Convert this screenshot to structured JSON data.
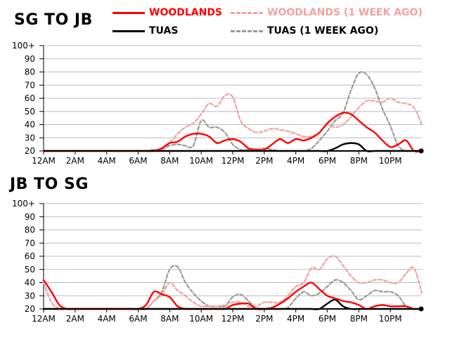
{
  "colors": {
    "woodlands": "#ff0000",
    "woodlands_prev": "#f4a0a0",
    "tuas": "#000000",
    "tuas_prev": "#999999",
    "grid": "#bbbbbb",
    "axis": "#000000"
  },
  "legend": [
    {
      "key": "woodlands",
      "label": "WOODLANDS",
      "style": "solid"
    },
    {
      "key": "woodlands_prev",
      "label": "WOODLANDS (1 WEEK AGO)",
      "style": "dashed"
    },
    {
      "key": "tuas",
      "label": "TUAS",
      "style": "solid"
    },
    {
      "key": "tuas_prev",
      "label": "TUAS (1 WEEK AGO)",
      "style": "dashed"
    }
  ],
  "chart_data": [
    {
      "type": "line",
      "title": "SG TO JB",
      "ylim": [
        20,
        100
      ],
      "yticks": [
        "20",
        "30",
        "40",
        "50",
        "60",
        "70",
        "80",
        "90",
        "100+"
      ],
      "xlim": [
        0,
        24
      ],
      "xticks": [
        "12AM",
        "2AM",
        "4AM",
        "6AM",
        "8AM",
        "10AM",
        "12PM",
        "2PM",
        "4PM",
        "6PM",
        "8PM",
        "10PM"
      ],
      "x": [
        0,
        0.5,
        1,
        1.5,
        2,
        2.5,
        3,
        3.5,
        4,
        4.5,
        5,
        5.5,
        6,
        6.5,
        7,
        7.5,
        8,
        8.5,
        9,
        9.5,
        10,
        10.5,
        11,
        11.5,
        12,
        12.5,
        13,
        13.5,
        14,
        14.5,
        15,
        15.5,
        16,
        16.5,
        17,
        17.5,
        18,
        18.5,
        19,
        19.5,
        20,
        20.5,
        21,
        21.5,
        22,
        22.5,
        23,
        23.5,
        24
      ],
      "series": [
        {
          "name": "WOODLANDS",
          "key": "woodlands",
          "values": [
            20,
            20,
            20,
            20,
            20,
            20,
            20,
            20,
            20,
            20,
            20,
            20,
            20,
            20,
            20,
            22,
            26,
            27,
            31,
            33,
            33,
            31,
            26,
            28,
            29,
            27,
            22,
            21,
            21,
            25,
            29,
            26,
            29,
            28,
            30,
            34,
            41,
            46,
            49,
            48,
            43,
            38,
            34,
            28,
            23,
            25,
            28,
            20,
            20
          ]
        },
        {
          "name": "WOODLANDS (1 WEEK AGO)",
          "key": "woodlands_prev",
          "values": [
            20,
            20,
            20,
            20,
            20,
            20,
            20,
            20,
            20,
            20,
            20,
            20,
            20,
            20,
            20,
            21,
            26,
            33,
            38,
            41,
            48,
            56,
            54,
            62,
            61,
            43,
            37,
            34,
            35,
            37,
            36,
            35,
            33,
            31,
            31,
            34,
            40,
            38,
            40,
            46,
            53,
            58,
            58,
            57,
            60,
            57,
            56,
            53,
            40
          ]
        },
        {
          "name": "TUAS",
          "key": "tuas",
          "values": [
            20,
            20,
            20,
            20,
            20,
            20,
            20,
            20,
            20,
            20,
            20,
            20,
            20,
            20,
            20,
            20,
            20,
            20,
            20,
            20,
            20,
            20,
            20,
            20,
            20,
            20,
            20,
            20,
            20,
            20,
            20,
            20,
            20,
            20,
            20,
            20,
            20,
            22,
            25,
            26,
            25,
            20,
            20,
            20,
            20,
            20,
            20,
            20,
            20
          ]
        },
        {
          "name": "TUAS (1 WEEK AGO)",
          "key": "tuas_prev",
          "values": [
            20,
            20,
            20,
            20,
            20,
            20,
            20,
            20,
            20,
            20,
            20,
            20,
            20,
            20,
            21,
            21,
            24,
            25,
            24,
            24,
            43,
            38,
            38,
            34,
            25,
            21,
            21,
            21,
            22,
            21,
            20,
            20,
            20,
            20,
            22,
            28,
            35,
            43,
            49,
            66,
            79,
            78,
            68,
            52,
            39,
            24,
            20,
            20,
            20
          ]
        }
      ]
    },
    {
      "type": "line",
      "title": "JB TO SG",
      "ylim": [
        20,
        100
      ],
      "yticks": [
        "20",
        "30",
        "40",
        "50",
        "60",
        "70",
        "80",
        "90",
        "100+"
      ],
      "xlim": [
        0,
        24
      ],
      "xticks": [
        "12AM",
        "2AM",
        "4AM",
        "6AM",
        "8AM",
        "10AM",
        "12PM",
        "2PM",
        "4PM",
        "6PM",
        "8PM",
        "10PM"
      ],
      "x": [
        0,
        0.5,
        1,
        1.5,
        2,
        2.5,
        3,
        3.5,
        4,
        4.5,
        5,
        5.5,
        6,
        6.5,
        7,
        7.5,
        8,
        8.5,
        9,
        9.5,
        10,
        10.5,
        11,
        11.5,
        12,
        12.5,
        13,
        13.5,
        14,
        14.5,
        15,
        15.5,
        16,
        16.5,
        17,
        17.5,
        18,
        18.5,
        19,
        19.5,
        20,
        20.5,
        21,
        21.5,
        22,
        22.5,
        23,
        23.5,
        24
      ],
      "series": [
        {
          "name": "WOODLANDS",
          "key": "woodlands",
          "values": [
            42,
            33,
            23,
            20,
            20,
            20,
            20,
            20,
            20,
            20,
            20,
            20,
            20,
            23,
            33,
            31,
            29,
            22,
            20,
            20,
            20,
            20,
            20,
            20,
            23,
            24,
            24,
            20,
            20,
            21,
            24,
            28,
            33,
            37,
            40,
            35,
            30,
            28,
            26,
            25,
            23,
            20,
            22,
            23,
            22,
            22,
            22,
            20,
            20
          ]
        },
        {
          "name": "WOODLANDS (1 WEEK AGO)",
          "key": "woodlands_prev",
          "values": [
            40,
            25,
            20,
            20,
            20,
            20,
            20,
            20,
            20,
            20,
            20,
            20,
            20,
            20,
            26,
            31,
            40,
            34,
            30,
            25,
            22,
            22,
            22,
            23,
            25,
            25,
            22,
            22,
            25,
            25,
            25,
            30,
            37,
            40,
            51,
            50,
            58,
            60,
            53,
            45,
            40,
            40,
            42,
            42,
            40,
            40,
            47,
            51,
            32
          ]
        },
        {
          "name": "TUAS",
          "key": "tuas",
          "values": [
            20,
            20,
            20,
            20,
            20,
            20,
            20,
            20,
            20,
            20,
            20,
            20,
            20,
            20,
            20,
            20,
            20,
            20,
            20,
            20,
            20,
            20,
            20,
            20,
            20,
            20,
            20,
            20,
            20,
            20,
            20,
            20,
            20,
            20,
            20,
            20,
            24,
            27,
            22,
            20,
            20,
            20,
            20,
            20,
            20,
            20,
            20,
            20,
            20
          ]
        },
        {
          "name": "TUAS (1 WEEK AGO)",
          "key": "tuas_prev",
          "values": [
            20,
            20,
            20,
            20,
            20,
            20,
            20,
            20,
            20,
            20,
            20,
            20,
            20,
            20,
            26,
            33,
            50,
            52,
            40,
            32,
            26,
            22,
            22,
            22,
            29,
            31,
            26,
            21,
            20,
            20,
            20,
            21,
            28,
            33,
            30,
            32,
            37,
            42,
            40,
            34,
            27,
            30,
            34,
            33,
            33,
            30,
            22,
            20,
            20
          ]
        }
      ]
    }
  ]
}
